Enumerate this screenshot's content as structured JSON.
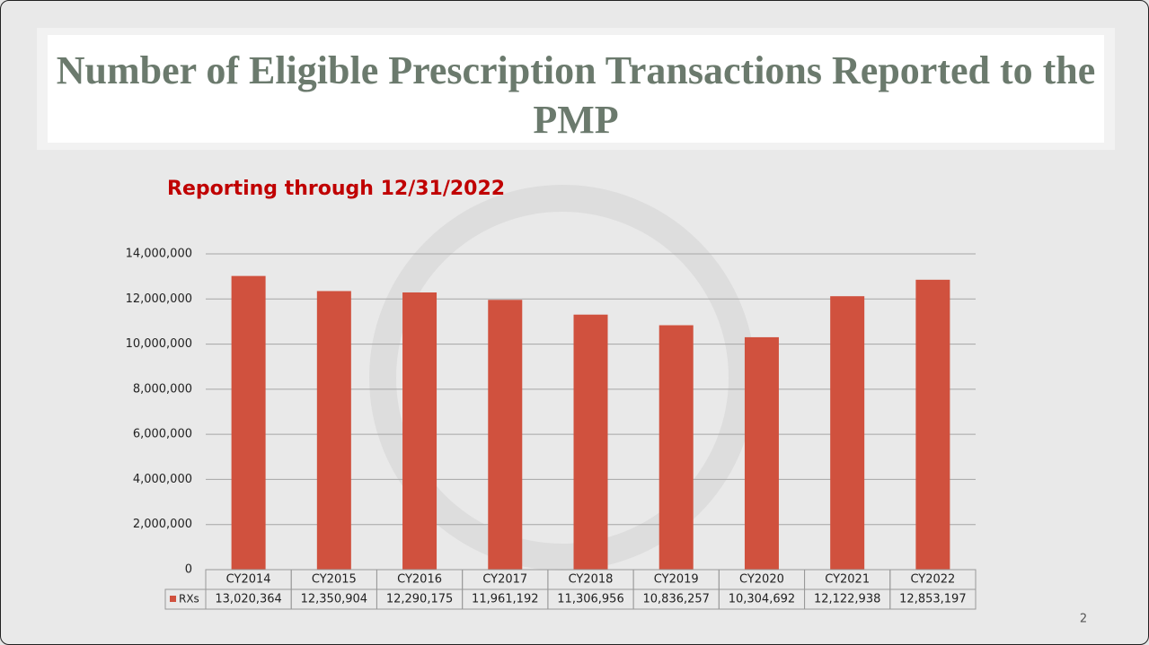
{
  "chart_data": {
    "type": "bar",
    "title": "Number of Eligible Prescription Transactions Reported to the PMP",
    "subtitle": "Reporting through 12/31/2022",
    "categories": [
      "CY2014",
      "CY2015",
      "CY2016",
      "CY2017",
      "CY2018",
      "CY2019",
      "CY2020",
      "CY2021",
      "CY2022"
    ],
    "series": [
      {
        "name": "RXs",
        "color": "#d0513e",
        "values": [
          13020364,
          12350904,
          12290175,
          11961192,
          11306956,
          10836257,
          10304692,
          12122938,
          12853197
        ],
        "value_labels": [
          "13,020,364",
          "12,350,904",
          "12,290,175",
          "11,961,192",
          "11,306,956",
          "10,836,257",
          "10,304,692",
          "12,122,938",
          "12,853,197"
        ]
      }
    ],
    "ylim": [
      0,
      14000000
    ],
    "yticks": [
      0,
      {
        "value": 2000000,
        "label": "2,000,000"
      },
      {
        "value": 4000000,
        "label": "4,000,000"
      },
      {
        "value": 6000000,
        "label": "6,000,000"
      },
      {
        "value": 8000000,
        "label": "8,000,000"
      },
      {
        "value": 10000000,
        "label": "10,000,000"
      },
      {
        "value": 12000000,
        "label": "12,000,000"
      },
      {
        "value": 14000000,
        "label": "14,000,000"
      }
    ],
    "grid": true
  },
  "slide_number": "2"
}
